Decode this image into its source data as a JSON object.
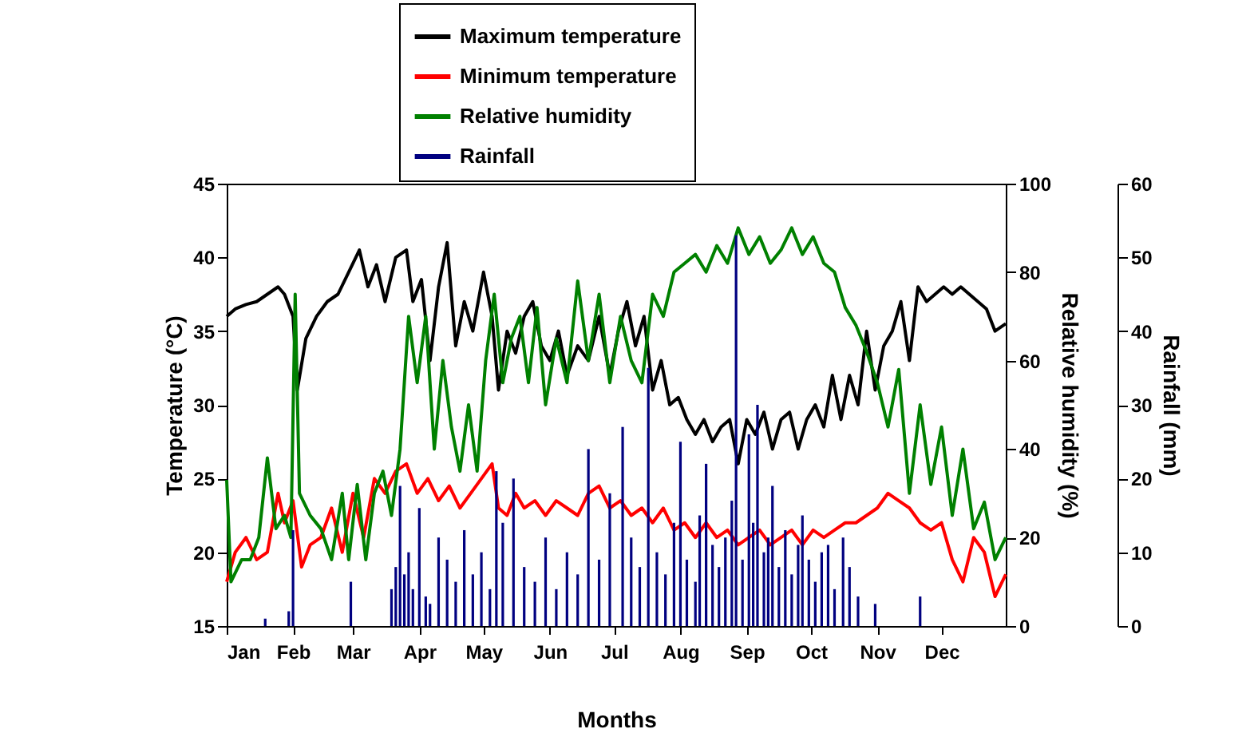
{
  "chart_data": {
    "type": "line",
    "xlabel": "Months",
    "ylabel": "Temperature (°C)",
    "y2label": "Relative humidity (%)",
    "y3label": "Rainfall (mm)",
    "xlim": [
      "--01-01",
      "--12-31"
    ],
    "xticks": [
      {
        "value": "--01-01",
        "label": "Jan"
      },
      {
        "value": "--02-01",
        "label": "Feb"
      },
      {
        "value": "--03-01",
        "label": "Mar"
      },
      {
        "value": "--04-01",
        "label": "Apr"
      },
      {
        "value": "--05-01",
        "label": "May"
      },
      {
        "value": "--06-01",
        "label": "Jun"
      },
      {
        "value": "--07-01",
        "label": "Jul"
      },
      {
        "value": "--08-01",
        "label": "Aug"
      },
      {
        "value": "--09-01",
        "label": "Sep"
      },
      {
        "value": "--10-01",
        "label": "Oct"
      },
      {
        "value": "--11-01",
        "label": "Nov"
      },
      {
        "value": "--12-01",
        "label": "Dec"
      }
    ],
    "ylim": [
      15,
      45
    ],
    "yticks": [
      15,
      20,
      25,
      30,
      35,
      40,
      45
    ],
    "y2lim": [
      0,
      100
    ],
    "y2ticks": [
      0,
      20,
      40,
      60,
      80,
      100
    ],
    "y3lim": [
      0,
      60
    ],
    "y3ticks": [
      0,
      10,
      20,
      30,
      40,
      50,
      60
    ],
    "grid": false,
    "legend": "top",
    "marker": "none",
    "line_style": "solid",
    "series": [
      {
        "name": "Maximum temperature",
        "color": "#000000",
        "x": [
          "--01-01",
          "--01-05",
          "--01-10",
          "--01-15",
          "--01-20",
          "--01-25",
          "--01-28",
          "--02-01",
          "--02-03",
          "--02-07",
          "--02-12",
          "--02-17",
          "--02-22",
          "--02-27",
          "--03-04",
          "--03-08",
          "--03-12",
          "--03-16",
          "--03-21",
          "--03-26",
          "--03-29",
          "--04-02",
          "--04-06",
          "--04-10",
          "--04-14",
          "--04-18",
          "--04-22",
          "--04-26",
          "--05-01",
          "--05-05",
          "--05-08",
          "--05-12",
          "--05-16",
          "--05-20",
          "--05-24",
          "--05-28",
          "--06-01",
          "--06-05",
          "--06-09",
          "--06-14",
          "--06-19",
          "--06-24",
          "--06-29",
          "--07-03",
          "--07-07",
          "--07-11",
          "--07-15",
          "--07-19",
          "--07-23",
          "--07-27",
          "--07-31",
          "--08-04",
          "--08-08",
          "--08-12",
          "--08-16",
          "--08-20",
          "--08-24",
          "--08-28",
          "--09-01",
          "--09-05",
          "--09-09",
          "--09-13",
          "--09-17",
          "--09-21",
          "--09-25",
          "--09-29",
          "--10-03",
          "--10-07",
          "--10-11",
          "--10-15",
          "--10-19",
          "--10-23",
          "--10-27",
          "--10-31",
          "--11-04",
          "--11-08",
          "--11-12",
          "--11-16",
          "--11-20",
          "--11-24",
          "--11-28",
          "--12-02",
          "--12-06",
          "--12-10",
          "--12-14",
          "--12-18",
          "--12-22",
          "--12-26",
          "--12-31"
        ],
        "values": [
          36,
          36.5,
          36.8,
          37,
          37.5,
          38,
          37.5,
          36,
          31,
          34.5,
          36,
          37,
          37.5,
          39,
          40.5,
          38,
          39.5,
          37,
          40,
          40.5,
          37,
          38.5,
          33,
          38,
          41,
          34,
          37,
          35,
          39,
          36,
          31,
          35,
          33.5,
          36,
          37,
          34,
          33,
          35,
          32,
          34,
          33,
          36,
          32,
          35,
          37,
          34,
          36,
          31,
          33,
          30,
          30.5,
          29,
          28,
          29,
          27.5,
          28.5,
          29,
          26,
          29,
          28,
          29.5,
          27,
          29,
          29.5,
          27,
          29,
          30,
          28.5,
          32,
          29,
          32,
          30,
          35,
          31,
          34,
          35,
          37,
          33,
          38,
          37,
          37.5,
          38,
          37.5,
          38,
          37.5,
          37,
          36.5,
          35,
          35.5
        ]
      },
      {
        "name": "Minimum temperature",
        "color": "#ff0000",
        "x": [
          "--01-01",
          "--01-05",
          "--01-10",
          "--01-15",
          "--01-20",
          "--01-25",
          "--01-28",
          "--02-01",
          "--02-05",
          "--02-09",
          "--02-14",
          "--02-19",
          "--02-24",
          "--03-01",
          "--03-06",
          "--03-11",
          "--03-16",
          "--03-21",
          "--03-26",
          "--03-31",
          "--04-05",
          "--04-10",
          "--04-15",
          "--04-20",
          "--04-25",
          "--04-30",
          "--05-05",
          "--05-08",
          "--05-12",
          "--05-16",
          "--05-20",
          "--05-25",
          "--05-30",
          "--06-04",
          "--06-09",
          "--06-14",
          "--06-19",
          "--06-24",
          "--06-29",
          "--07-04",
          "--07-09",
          "--07-14",
          "--07-19",
          "--07-24",
          "--07-29",
          "--08-03",
          "--08-08",
          "--08-13",
          "--08-18",
          "--08-23",
          "--08-28",
          "--09-02",
          "--09-07",
          "--09-12",
          "--09-17",
          "--09-22",
          "--09-27",
          "--10-02",
          "--10-07",
          "--10-12",
          "--10-17",
          "--10-22",
          "--10-27",
          "--11-01",
          "--11-06",
          "--11-11",
          "--11-16",
          "--11-21",
          "--11-26",
          "--12-01",
          "--12-06",
          "--12-11",
          "--12-16",
          "--12-21",
          "--12-26",
          "--12-31"
        ],
        "values": [
          18,
          20,
          21,
          19.5,
          20,
          24,
          22,
          23.5,
          19,
          20.5,
          21,
          23,
          20,
          24,
          21,
          25,
          24,
          25.5,
          26,
          24,
          25,
          23.5,
          24.5,
          23,
          24,
          25,
          26,
          23,
          22.5,
          24,
          23,
          23.5,
          22.5,
          23.5,
          23,
          22.5,
          24,
          24.5,
          23,
          23.5,
          22.5,
          23,
          22,
          23,
          21.5,
          22,
          21,
          22,
          21,
          21.5,
          20.5,
          21,
          21.5,
          20.5,
          21,
          21.5,
          20.5,
          21.5,
          21,
          21.5,
          22,
          22,
          22.5,
          23,
          24,
          23.5,
          23,
          22,
          21.5,
          22,
          19.5,
          18,
          21,
          20,
          17,
          18.5
        ]
      },
      {
        "name": "Relative humidity",
        "color": "#008000",
        "axis": "y2",
        "x": [
          "--01-01",
          "--01-03",
          "--01-08",
          "--01-12",
          "--01-16",
          "--01-20",
          "--01-24",
          "--01-28",
          "--01-31",
          "--02-02",
          "--02-04",
          "--02-09",
          "--02-14",
          "--02-19",
          "--02-24",
          "--02-27",
          "--03-03",
          "--03-07",
          "--03-11",
          "--03-15",
          "--03-19",
          "--03-23",
          "--03-27",
          "--03-31",
          "--04-04",
          "--04-08",
          "--04-12",
          "--04-16",
          "--04-20",
          "--04-24",
          "--04-28",
          "--05-02",
          "--05-06",
          "--05-10",
          "--05-14",
          "--05-18",
          "--05-22",
          "--05-26",
          "--05-30",
          "--06-04",
          "--06-09",
          "--06-14",
          "--06-19",
          "--06-24",
          "--06-29",
          "--07-04",
          "--07-09",
          "--07-14",
          "--07-19",
          "--07-24",
          "--07-29",
          "--08-03",
          "--08-08",
          "--08-13",
          "--08-18",
          "--08-23",
          "--08-28",
          "--09-02",
          "--09-07",
          "--09-12",
          "--09-17",
          "--09-22",
          "--09-27",
          "--10-02",
          "--10-07",
          "--10-12",
          "--10-17",
          "--10-22",
          "--10-27",
          "--11-01",
          "--11-06",
          "--11-11",
          "--11-16",
          "--11-21",
          "--11-26",
          "--12-01",
          "--12-06",
          "--12-11",
          "--12-16",
          "--12-21",
          "--12-26",
          "--12-31"
        ],
        "values": [
          33,
          10,
          15,
          15,
          20,
          38,
          22,
          25,
          20,
          75,
          30,
          25,
          22,
          15,
          30,
          15,
          32,
          15,
          30,
          35,
          25,
          40,
          70,
          55,
          70,
          40,
          60,
          45,
          35,
          50,
          35,
          60,
          75,
          55,
          65,
          70,
          55,
          72,
          50,
          65,
          55,
          78,
          60,
          75,
          55,
          70,
          60,
          55,
          75,
          70,
          80,
          82,
          84,
          80,
          86,
          82,
          90,
          84,
          88,
          82,
          85,
          90,
          84,
          88,
          82,
          80,
          72,
          68,
          62,
          55,
          45,
          58,
          30,
          50,
          32,
          45,
          25,
          40,
          22,
          28,
          15,
          20
        ]
      },
      {
        "name": "Rainfall",
        "color": "#000080",
        "type": "bar",
        "axis": "y3",
        "x": [
          "--01-19",
          "--01-30",
          "--02-01",
          "--02-28",
          "--03-19",
          "--03-21",
          "--03-23",
          "--03-25",
          "--03-27",
          "--03-29",
          "--04-01",
          "--04-04",
          "--04-06",
          "--04-10",
          "--04-14",
          "--04-18",
          "--04-22",
          "--04-26",
          "--04-30",
          "--05-04",
          "--05-07",
          "--05-10",
          "--05-15",
          "--05-20",
          "--05-25",
          "--05-30",
          "--06-04",
          "--06-09",
          "--06-14",
          "--06-19",
          "--06-24",
          "--06-29",
          "--07-05",
          "--07-09",
          "--07-13",
          "--07-17",
          "--07-21",
          "--07-25",
          "--07-29",
          "--08-01",
          "--08-04",
          "--08-08",
          "--08-10",
          "--08-13",
          "--08-16",
          "--08-19",
          "--08-22",
          "--08-25",
          "--08-27",
          "--08-30",
          "--09-02",
          "--09-04",
          "--09-06",
          "--09-09",
          "--09-11",
          "--09-13",
          "--09-16",
          "--09-19",
          "--09-22",
          "--09-25",
          "--09-27",
          "--09-30",
          "--10-03",
          "--10-06",
          "--10-09",
          "--10-12",
          "--10-16",
          "--10-19",
          "--10-23",
          "--10-31",
          "--11-21"
        ],
        "values": [
          1,
          2,
          13,
          6,
          5,
          8,
          19,
          7,
          10,
          5,
          16,
          4,
          3,
          12,
          9,
          6,
          13,
          7,
          10,
          5,
          21,
          14,
          20,
          8,
          6,
          12,
          5,
          10,
          7,
          24,
          9,
          18,
          27,
          12,
          8,
          35,
          10,
          7,
          14,
          25,
          9,
          6,
          15,
          22,
          11,
          8,
          12,
          17,
          53,
          9,
          26,
          14,
          30,
          10,
          12,
          19,
          8,
          13,
          7,
          11,
          15,
          9,
          6,
          10,
          11,
          5,
          12,
          8,
          4,
          3,
          4
        ]
      }
    ]
  }
}
